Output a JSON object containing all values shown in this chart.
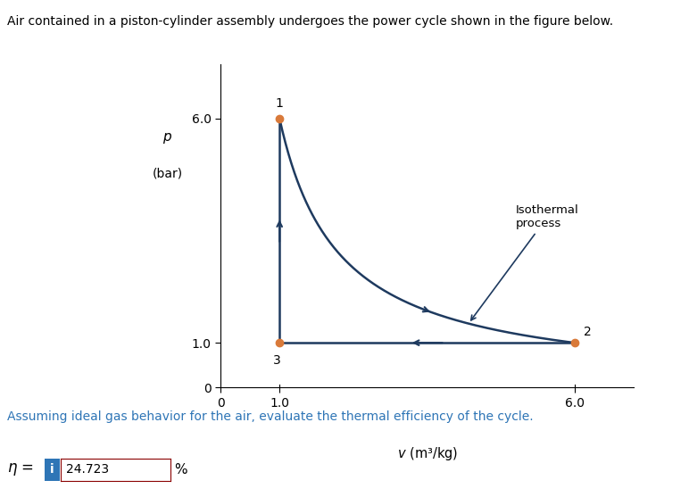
{
  "title": "Air contained in a piston-cylinder assembly undergoes the power cycle shown in the figure below.",
  "xlabel": "v (m³/kg)",
  "ylabel_line1": "p",
  "ylabel_line2": "(bar)",
  "point1": [
    1.0,
    6.0
  ],
  "point2": [
    6.0,
    1.0
  ],
  "point3": [
    1.0,
    1.0
  ],
  "point_color": "#d97a3a",
  "line_color": "#1e3a5f",
  "x_ticks": [
    0,
    1.0,
    6.0
  ],
  "y_ticks": [
    0,
    1.0,
    6.0
  ],
  "xlim": [
    0,
    7.0
  ],
  "ylim": [
    0,
    7.2
  ],
  "label1": "1",
  "label2": "2",
  "label3": "3",
  "isothermal_label": "Isothermal\nprocess",
  "annotation_text": "Assuming ideal gas behavior for the air, evaluate the thermal efficiency of the cycle.",
  "eta_label": "η =",
  "eta_value": "24.723",
  "eta_unit": "%",
  "text_color_blue": "#2e75b6",
  "text_color_dark": "#1e3a5f",
  "background_color": "#ffffff",
  "figsize": [
    7.72,
    5.57
  ],
  "dpi": 100
}
